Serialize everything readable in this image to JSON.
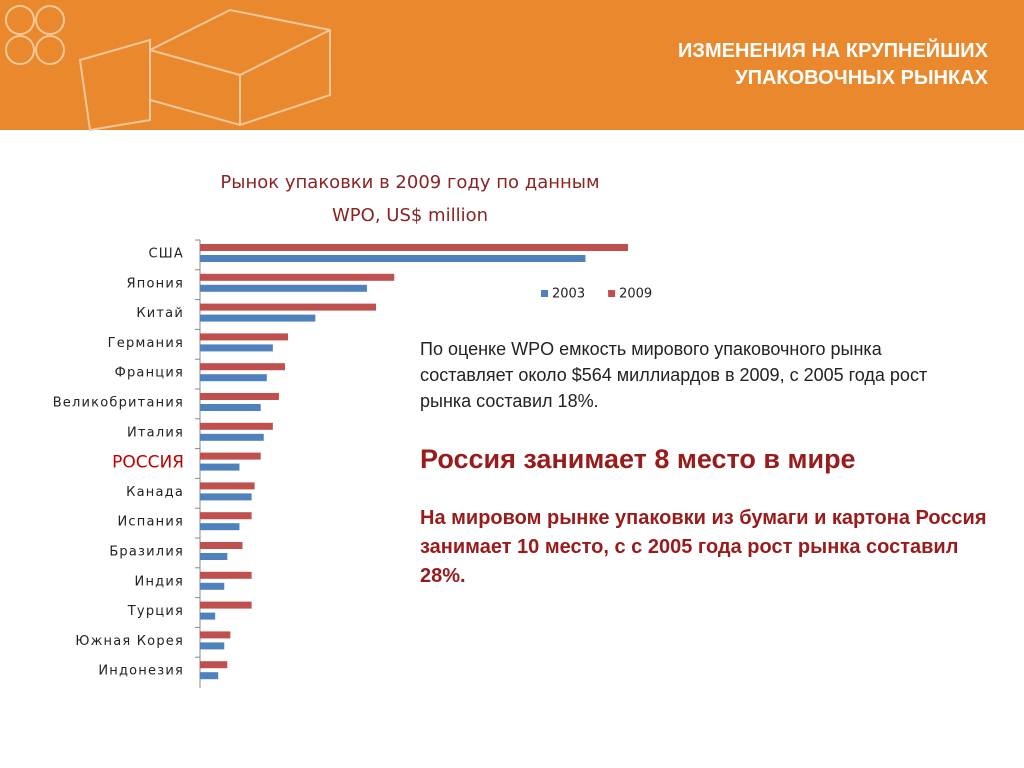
{
  "header": {
    "title": [
      "ИЗМЕНЕНИЯ НА КРУПНЕЙШИХ",
      "УПАКОВОЧНЫХ РЫНКАХ"
    ]
  },
  "chart_data": {
    "type": "hbar",
    "title": [
      "Рынок упаковки в 2009 году по данным",
      "WPO, US$ million"
    ],
    "categories": [
      "США",
      "Япония",
      "Китай",
      "Германия",
      "Франция",
      "Великобритания",
      "Италия",
      "РОССИЯ",
      "Канада",
      "Испания",
      "Бразилия",
      "Индия",
      "Турция",
      "Южная Корея",
      "Индонезия"
    ],
    "series": [
      {
        "name": "2003",
        "color": "#4f81bd",
        "values": [
          127000,
          55000,
          38000,
          24000,
          22000,
          20000,
          21000,
          13000,
          17000,
          13000,
          9000,
          8000,
          5000,
          8000,
          6000
        ]
      },
      {
        "name": "2009",
        "color": "#c0504d",
        "values": [
          141000,
          64000,
          58000,
          29000,
          28000,
          26000,
          24000,
          20000,
          18000,
          17000,
          14000,
          17000,
          17000,
          10000,
          9000
        ]
      }
    ]
  },
  "text": {
    "paragraph": "По оценке WPO емкость мирового упаковочного рынка составляет около $564 миллиардов в 2009, с 2005 года рост рынка составил 18%.",
    "headline": "Россия занимает 8 место в мире",
    "paragraph2": "На мировом рынке упаковки из бумаги и картона Россия занимает 10 место, с с 2005 года рост рынка составил 28%."
  }
}
